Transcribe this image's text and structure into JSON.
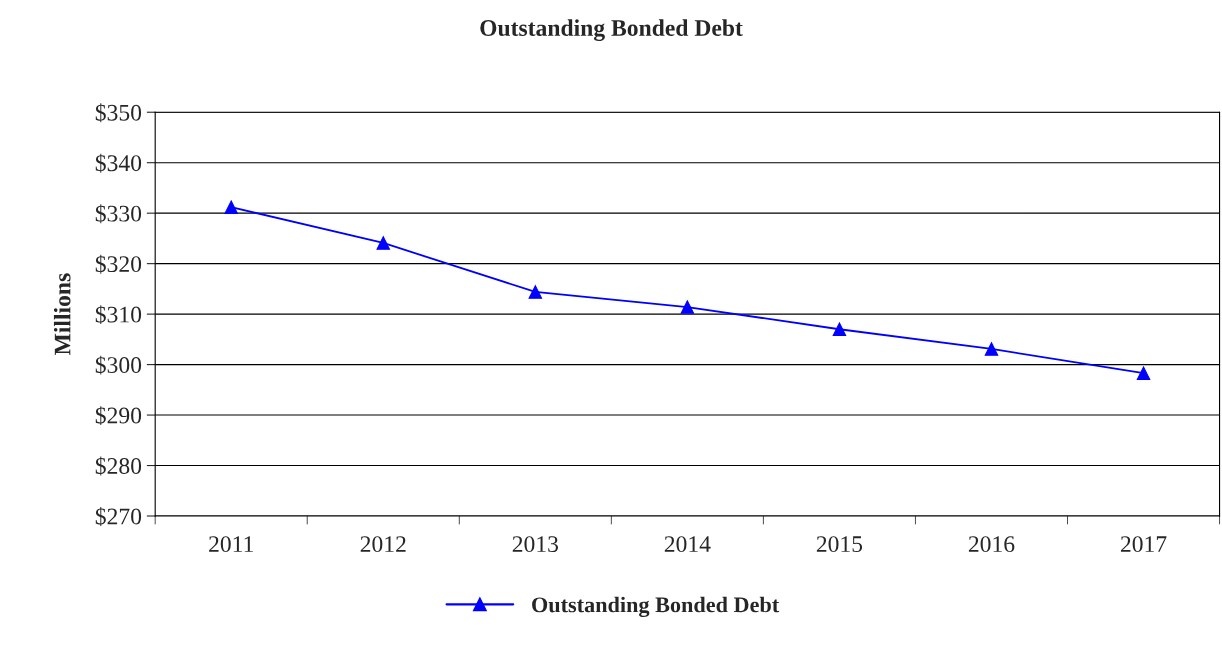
{
  "chart_data": {
    "type": "line",
    "title": "Outstanding Bonded Debt",
    "ylabel": "Millions",
    "categories": [
      "2011",
      "2012",
      "2013",
      "2014",
      "2015",
      "2016",
      "2017"
    ],
    "series": [
      {
        "name": "Outstanding Bonded Debt",
        "color": "#0000ff",
        "values": [
          331.2,
          324.1,
          314.4,
          311.4,
          307.0,
          303.1,
          298.3
        ]
      }
    ],
    "ylim": [
      270,
      350
    ],
    "yticks": [
      {
        "value": 270,
        "label": "$270"
      },
      {
        "value": 280,
        "label": "$280"
      },
      {
        "value": 290,
        "label": "$290"
      },
      {
        "value": 300,
        "label": "$300"
      },
      {
        "value": 310,
        "label": "$310"
      },
      {
        "value": 320,
        "label": "$320"
      },
      {
        "value": 330,
        "label": "$330"
      },
      {
        "value": 340,
        "label": "$340"
      },
      {
        "value": 350,
        "label": "$350"
      }
    ],
    "grid": "y",
    "legend": "bottom",
    "marker": "triangle",
    "line_style": "solid"
  }
}
